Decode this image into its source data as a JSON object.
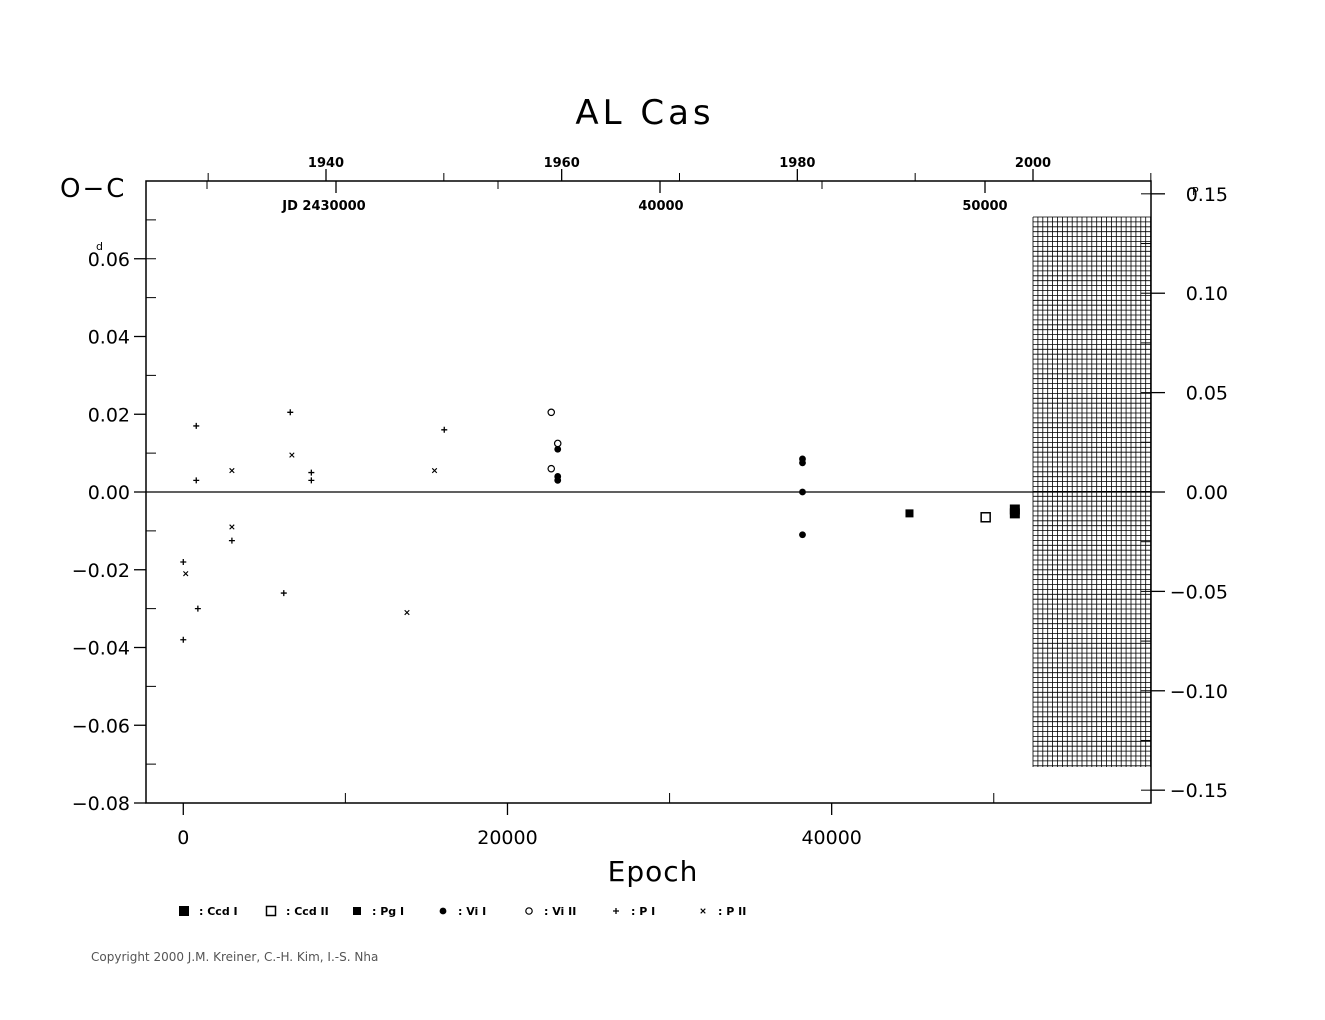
{
  "chart_data": {
    "type": "scatter",
    "title": "AL  Cas",
    "ylabel": "O−C",
    "ylabel_unit": "d",
    "xlabel": "Epoch",
    "xlim": [
      -2300,
      59700
    ],
    "ylim": [
      -0.08,
      0.08
    ],
    "x_ticks": [
      0,
      20000,
      40000
    ],
    "x_tick_labels": [
      "0",
      "20000",
      "40000"
    ],
    "y_ticks": [
      0.06,
      0.04,
      0.02,
      0.0,
      -0.02,
      -0.04,
      -0.06,
      -0.08
    ],
    "y_tick_labels": [
      "0.06",
      "0.04",
      "0.02",
      "0.00",
      "−0.02",
      "−0.04",
      "−0.06",
      "−0.08"
    ],
    "right_axis": {
      "unit": "P",
      "ticks": [
        0.15,
        0.1,
        0.05,
        0.0,
        -0.05,
        -0.1,
        -0.15
      ],
      "tick_labels": [
        "0.15",
        "0.10",
        "0.05",
        "0.00",
        "−0.05",
        "−0.10",
        "−0.15"
      ]
    },
    "top_year_axis": {
      "ticks": [
        1940,
        1960,
        1980,
        2000
      ],
      "tick_labels": [
        "1940",
        "1960",
        "1980",
        "2000"
      ]
    },
    "top_jd_axis": {
      "labels": [
        "JD 2430000",
        "40000",
        "50000"
      ]
    },
    "zero_line": true,
    "grid": false,
    "legend_position": "bottom",
    "legend": [
      {
        "symbol": "filled-square-large",
        "label": ": Ccd  I"
      },
      {
        "symbol": "open-square",
        "label": ": Ccd  II"
      },
      {
        "symbol": "filled-square-small",
        "label": ": Pg  I"
      },
      {
        "symbol": "filled-circle",
        "label": ": Vi  I"
      },
      {
        "symbol": "open-circle",
        "label": ": Vi  II"
      },
      {
        "symbol": "plus",
        "label": ": P  I"
      },
      {
        "symbol": "cross",
        "label": ": P  II"
      }
    ],
    "series": [
      {
        "name": ": P  I",
        "symbol": "plus",
        "points": [
          [
            0,
            -0.018
          ],
          [
            0,
            -0.038
          ],
          [
            800,
            0.017
          ],
          [
            800,
            0.003
          ],
          [
            900,
            -0.03
          ],
          [
            3000,
            -0.0125
          ],
          [
            6200,
            -0.026
          ],
          [
            6600,
            0.0205
          ],
          [
            7900,
            0.005
          ],
          [
            7900,
            0.003
          ],
          [
            16100,
            0.016
          ]
        ]
      },
      {
        "name": ": P  II",
        "symbol": "cross",
        "points": [
          [
            150,
            -0.021
          ],
          [
            3000,
            0.0055
          ],
          [
            3000,
            -0.009
          ],
          [
            6700,
            0.0095
          ],
          [
            13800,
            -0.031
          ],
          [
            15500,
            0.0055
          ]
        ]
      },
      {
        "name": ": Vi  I",
        "symbol": "filled-circle",
        "points": [
          [
            23100,
            0.011
          ],
          [
            23100,
            0.004
          ],
          [
            23100,
            0.003
          ],
          [
            38200,
            0.0085
          ],
          [
            38200,
            0.0075
          ],
          [
            38200,
            0.0
          ],
          [
            38200,
            -0.011
          ]
        ]
      },
      {
        "name": ": Vi  II",
        "symbol": "open-circle",
        "points": [
          [
            22700,
            0.0205
          ],
          [
            22700,
            0.006
          ],
          [
            23100,
            0.0125
          ]
        ]
      },
      {
        "name": ": Pg  I",
        "symbol": "filled-square-small",
        "points": [
          [
            44800,
            -0.0055
          ]
        ]
      },
      {
        "name": ": Ccd  II",
        "symbol": "open-square",
        "points": [
          [
            49500,
            -0.0065
          ]
        ]
      },
      {
        "name": ": Ccd  I",
        "symbol": "filled-square-large",
        "points": [
          [
            51300,
            -0.0045
          ],
          [
            51300,
            -0.0055
          ]
        ]
      }
    ]
  },
  "copyright": "Copyright 2000 J.M. Kreiner, C.-H. Kim, I.-S. Nha"
}
